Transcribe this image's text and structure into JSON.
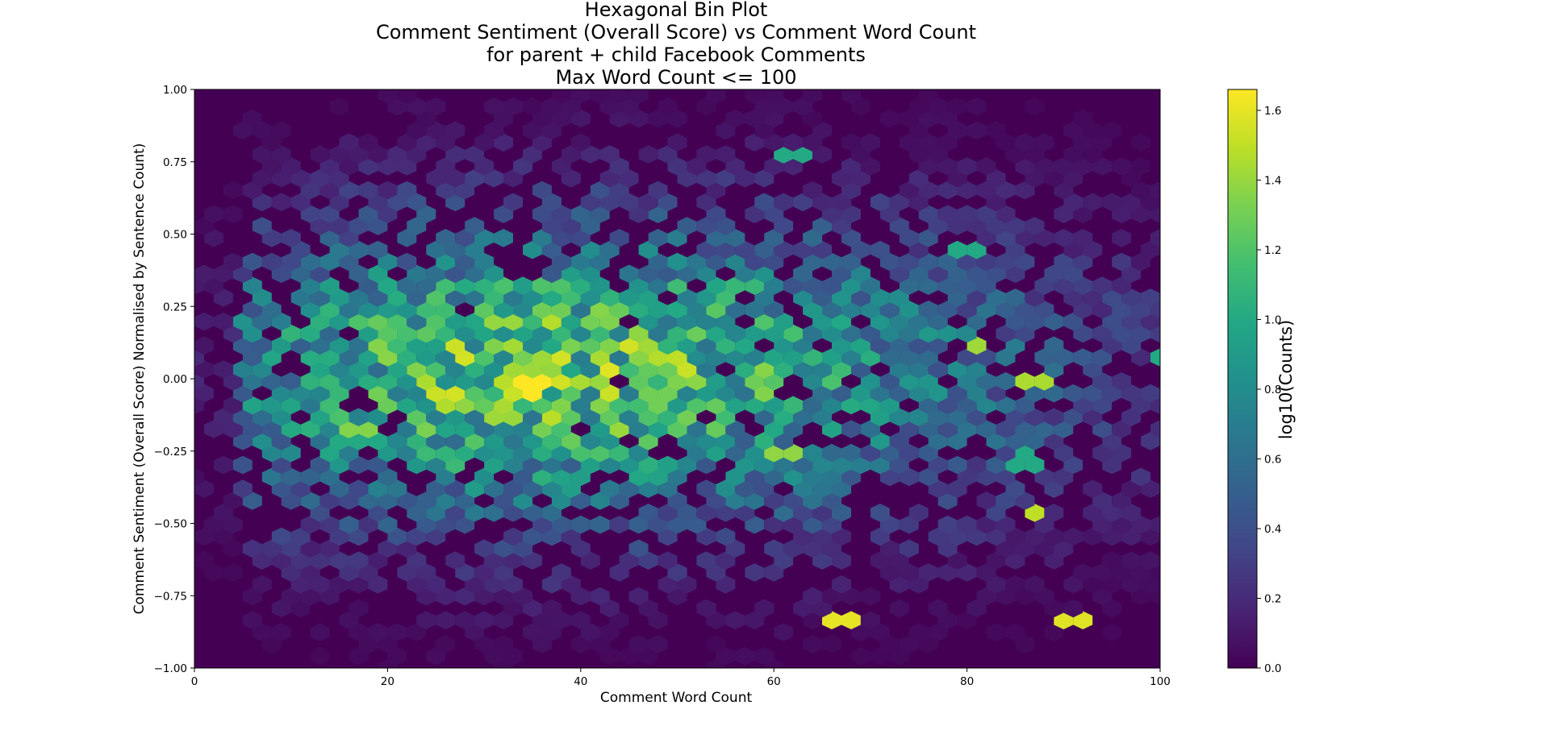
{
  "chart_data": {
    "type": "heatmap",
    "subtype": "hexbin",
    "title_lines": [
      "Hexagonal Bin Plot",
      "Comment Sentiment (Overall Score) vs Comment Word Count",
      "for parent + child Facebook Comments",
      "Max Word Count <= 100"
    ],
    "xlabel": "Comment Word Count",
    "ylabel": "Comment Sentiment (Overall Score) Normalised by Sentence Count)",
    "xlim": [
      0,
      100
    ],
    "ylim": [
      -1.0,
      1.0
    ],
    "x_ticks": [
      0,
      20,
      40,
      60,
      80,
      100
    ],
    "x_tick_labels": [
      "0",
      "20",
      "40",
      "60",
      "80",
      "100"
    ],
    "y_ticks": [
      -1.0,
      -0.75,
      -0.5,
      -0.25,
      0.0,
      0.25,
      0.5,
      0.75,
      1.0
    ],
    "y_tick_labels": [
      "−1.00",
      "−0.75",
      "−0.50",
      "−0.25",
      "0.00",
      "0.25",
      "0.50",
      "0.75",
      "1.00"
    ],
    "grid": false,
    "colormap": "viridis",
    "background_value": 0.0,
    "colorbar": {
      "label": "log10(Counts)",
      "range": [
        0.0,
        1.66
      ],
      "ticks": [
        0.0,
        0.2,
        0.4,
        0.6,
        0.8,
        1.0,
        1.2,
        1.4,
        1.6
      ],
      "tick_labels": [
        "0.0",
        "0.2",
        "0.4",
        "0.6",
        "0.8",
        "1.0",
        "1.2",
        "1.4",
        "1.6"
      ]
    },
    "notable_bins": [
      {
        "x": 35,
        "y": -0.03,
        "log10_count": 1.66
      },
      {
        "x": 67,
        "y": -0.82,
        "log10_count": 1.6
      },
      {
        "x": 91,
        "y": -0.82,
        "log10_count": 1.58
      },
      {
        "x": 87,
        "y": -0.46,
        "log10_count": 1.5
      },
      {
        "x": 87,
        "y": 0.0,
        "log10_count": 1.45
      },
      {
        "x": 81,
        "y": 0.11,
        "log10_count": 1.42
      },
      {
        "x": 61,
        "y": -0.25,
        "log10_count": 1.38
      },
      {
        "x": 46,
        "y": 0.14,
        "log10_count": 1.38
      },
      {
        "x": 62,
        "y": 0.79,
        "log10_count": 1.0
      },
      {
        "x": 57,
        "y": 0.32,
        "log10_count": 1.1
      },
      {
        "x": 19,
        "y": -0.06,
        "log10_count": 1.3
      },
      {
        "x": 17,
        "y": -0.18,
        "log10_count": 1.35
      },
      {
        "x": 48,
        "y": -0.07,
        "log10_count": 1.3
      },
      {
        "x": 43,
        "y": -0.14,
        "log10_count": 1.25
      },
      {
        "x": 80,
        "y": 0.43,
        "log10_count": 1.0
      },
      {
        "x": 86,
        "y": -0.28,
        "log10_count": 1.0
      },
      {
        "x": 100,
        "y": 0.07,
        "log10_count": 1.0
      }
    ],
    "density_description": "Highest density near x 10-55, y -0.30 to 0.30 (log10 counts 0.8-1.2); sparser toward larger word counts and extreme sentiment"
  }
}
